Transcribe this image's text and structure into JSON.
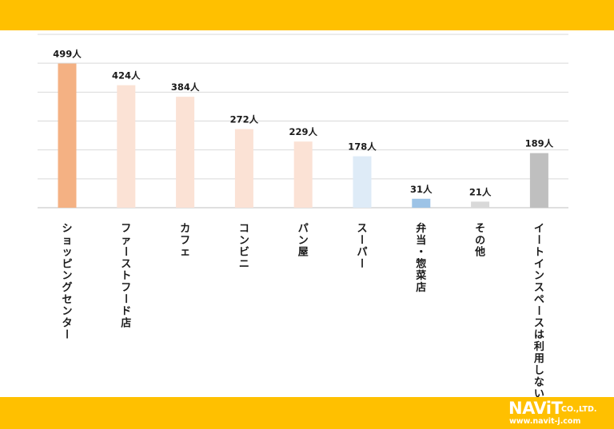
{
  "chart_data": {
    "type": "bar",
    "categories": [
      "ショッピングセンター",
      "ファーストフード店",
      "カフェ",
      "コンビニ",
      "パン屋",
      "スーパー",
      "弁当・惣菜店",
      "その他",
      "イートインスペースは利用しない"
    ],
    "values": [
      499,
      424,
      384,
      272,
      229,
      178,
      31,
      21,
      189
    ],
    "value_labels": [
      "499人",
      "424人",
      "384人",
      "272人",
      "229人",
      "178人",
      "31人",
      "21人",
      "189人"
    ],
    "colors": [
      "#f4b183",
      "#fbe2d5",
      "#fbe2d5",
      "#fbe2d5",
      "#fbe2d5",
      "#deebf7",
      "#9dc3e6",
      "#d9d9d9",
      "#bfbfbf"
    ],
    "title": "",
    "xlabel": "",
    "ylabel": "",
    "ylim": [
      0,
      600
    ],
    "grid": true,
    "legend": "none"
  },
  "brand": {
    "logo_main": "NAViT",
    "logo_company": "CO.,LTD.",
    "logo_url": "www.navit-j.com",
    "band_color": "#ffc000"
  }
}
